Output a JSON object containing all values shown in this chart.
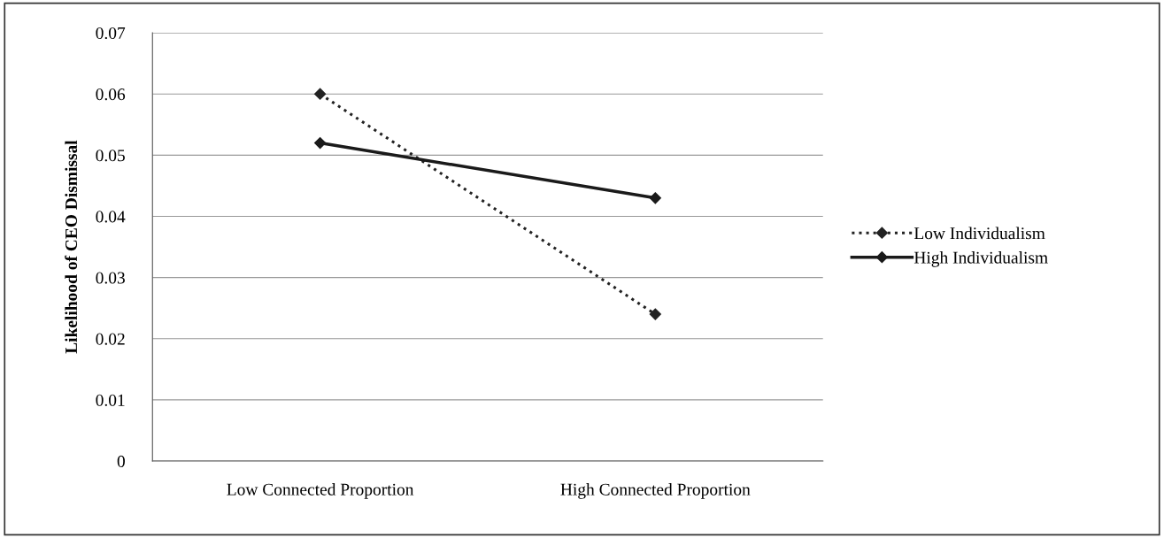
{
  "chart_data": {
    "type": "line",
    "ylabel": "Likelihood of CEO Dismissal",
    "categories": [
      "Low Connected Proportion",
      "High Connected Proportion"
    ],
    "series": [
      {
        "name": "Low Individualism",
        "color": "#222222",
        "values": [
          0.06,
          0.024
        ],
        "line_style": "dotted"
      },
      {
        "name": "High Individualism",
        "color": "#1a1a1a",
        "values": [
          0.052,
          0.043
        ],
        "line_style": "solid"
      }
    ],
    "ylim": [
      0,
      0.07
    ],
    "yticks": [
      {
        "value": 0,
        "label": "0"
      },
      {
        "value": 0.01,
        "label": "0.01"
      },
      {
        "value": 0.02,
        "label": "0.02"
      },
      {
        "value": 0.03,
        "label": "0.03"
      },
      {
        "value": 0.04,
        "label": "0.04"
      },
      {
        "value": 0.05,
        "label": "0.05"
      },
      {
        "value": 0.06,
        "label": "0.06"
      },
      {
        "value": 0.07,
        "label": "0.07"
      }
    ],
    "grid": "y",
    "legend": "right",
    "marker": "diamond"
  }
}
